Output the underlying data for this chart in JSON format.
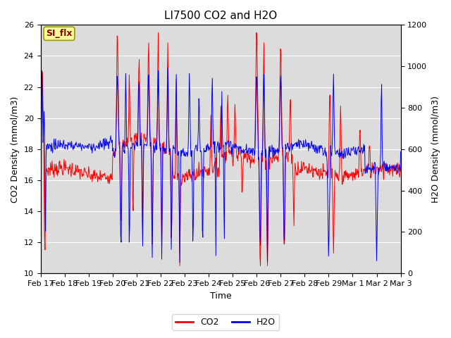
{
  "title": "LI7500 CO2 and H2O",
  "xlabel": "Time",
  "ylabel_left": "CO2 Density (mmol/m3)",
  "ylabel_right": "H2O Density (mmol/m3)",
  "co2_ylim": [
    10,
    26
  ],
  "h2o_ylim": [
    0,
    1200
  ],
  "xtick_labels": [
    "Feb 17",
    "Feb 18",
    "Feb 19",
    "Feb 20",
    "Feb 21",
    "Feb 22",
    "Feb 23",
    "Feb 24",
    "Feb 25",
    "Feb 26",
    "Feb 27",
    "Feb 28",
    "Feb 29",
    "Mar 1",
    "Mar 2",
    "Mar 3"
  ],
  "co2_color": "#FF0000",
  "h2o_color": "#0000FF",
  "background_color": "#DCDCDC",
  "annotation_text": "SI_flx",
  "annotation_bg": "#FFFF99",
  "annotation_border": "#999900",
  "legend_co2": "CO2",
  "legend_h2o": "H2O",
  "title_fontsize": 11,
  "axis_fontsize": 9,
  "tick_fontsize": 8
}
